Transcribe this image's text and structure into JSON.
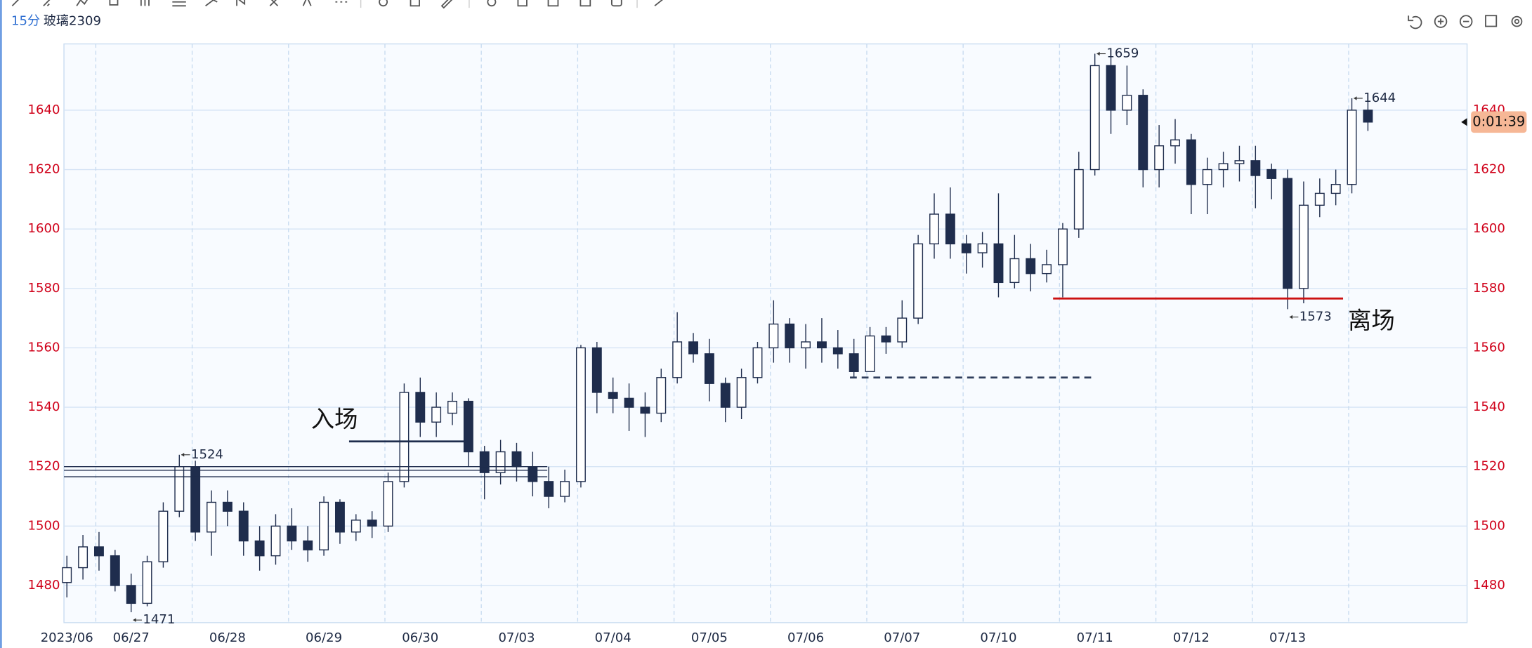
{
  "chart_data": {
    "type": "candlestick",
    "period": "15分",
    "title": "玻璃2309",
    "categories": [
      "2023/06",
      null,
      null,
      null,
      "06/27",
      null,
      null,
      null,
      null,
      null,
      "06/28",
      null,
      null,
      null,
      null,
      null,
      "06/29",
      null,
      null,
      null,
      null,
      null,
      "06/30",
      null,
      null,
      null,
      null,
      null,
      "07/03",
      null,
      null,
      null,
      null,
      null,
      "07/04",
      null,
      null,
      null,
      null,
      null,
      "07/05",
      null,
      null,
      null,
      null,
      null,
      "07/06",
      null,
      null,
      null,
      null,
      null,
      "07/07",
      null,
      null,
      null,
      null,
      null,
      "07/10",
      null,
      null,
      null,
      null,
      null,
      "07/11",
      null,
      null,
      null,
      null,
      null,
      "07/12",
      null,
      null,
      null,
      null,
      null,
      "07/13",
      null,
      null,
      null,
      null,
      null
    ],
    "open": [
      1481,
      1486,
      1493,
      1490,
      1480,
      1474,
      1488,
      1505,
      1520,
      1498,
      1508,
      1505,
      1495,
      1490,
      1500,
      1495,
      1492,
      1508,
      1498,
      1502,
      1500,
      1515,
      1545,
      1535,
      1538,
      1542,
      1525,
      1518,
      1525,
      1520,
      1515,
      1510,
      1515,
      1560,
      1545,
      1543,
      1540,
      1538,
      1550,
      1562,
      1558,
      1548,
      1540,
      1550,
      1560,
      1568,
      1560,
      1562,
      1560,
      1558,
      1552,
      1564,
      1562,
      1570,
      1595,
      1605,
      1595,
      1592,
      1595,
      1582,
      1590,
      1585,
      1588,
      1600,
      1620,
      1655,
      1640,
      1645,
      1620,
      1628,
      1630,
      1615,
      1620,
      1622,
      1623,
      1620,
      1617,
      1580,
      1608,
      1612,
      1615,
      1640
    ],
    "high": [
      1490,
      1497,
      1498,
      1492,
      1484,
      1490,
      1508,
      1524,
      1522,
      1512,
      1512,
      1508,
      1500,
      1504,
      1506,
      1500,
      1510,
      1509,
      1504,
      1505,
      1518,
      1548,
      1550,
      1545,
      1545,
      1543,
      1527,
      1529,
      1528,
      1525,
      1520,
      1519,
      1561,
      1562,
      1550,
      1548,
      1545,
      1553,
      1572,
      1565,
      1563,
      1550,
      1553,
      1562,
      1576,
      1570,
      1568,
      1570,
      1566,
      1563,
      1567,
      1567,
      1576,
      1598,
      1612,
      1614,
      1598,
      1599,
      1612,
      1598,
      1595,
      1593,
      1602,
      1626,
      1659,
      1658,
      1655,
      1647,
      1635,
      1637,
      1632,
      1624,
      1626,
      1628,
      1628,
      1622,
      1620,
      1616,
      1617,
      1620,
      1644,
      1643
    ],
    "low": [
      1476,
      1482,
      1485,
      1478,
      1471,
      1473,
      1486,
      1503,
      1495,
      1490,
      1500,
      1490,
      1485,
      1487,
      1492,
      1488,
      1490,
      1494,
      1495,
      1496,
      1498,
      1513,
      1530,
      1530,
      1534,
      1520,
      1509,
      1514,
      1515,
      1510,
      1506,
      1508,
      1513,
      1538,
      1538,
      1532,
      1530,
      1535,
      1548,
      1555,
      1542,
      1535,
      1536,
      1548,
      1555,
      1555,
      1553,
      1555,
      1553,
      1550,
      1552,
      1558,
      1560,
      1568,
      1590,
      1590,
      1585,
      1587,
      1577,
      1580,
      1579,
      1582,
      1577,
      1597,
      1618,
      1632,
      1635,
      1614,
      1614,
      1622,
      1605,
      1605,
      1614,
      1616,
      1607,
      1610,
      1573,
      1575,
      1604,
      1608,
      1612,
      1633
    ],
    "close": [
      1486,
      1493,
      1490,
      1480,
      1474,
      1488,
      1505,
      1520,
      1498,
      1508,
      1505,
      1495,
      1490,
      1500,
      1495,
      1492,
      1508,
      1498,
      1502,
      1500,
      1515,
      1545,
      1535,
      1540,
      1542,
      1525,
      1518,
      1525,
      1520,
      1515,
      1510,
      1515,
      1560,
      1545,
      1543,
      1540,
      1538,
      1550,
      1562,
      1558,
      1548,
      1540,
      1550,
      1560,
      1568,
      1560,
      1562,
      1560,
      1558,
      1552,
      1564,
      1562,
      1570,
      1595,
      1605,
      1595,
      1592,
      1595,
      1582,
      1590,
      1585,
      1588,
      1600,
      1620,
      1655,
      1640,
      1645,
      1620,
      1628,
      1630,
      1615,
      1620,
      1622,
      1623,
      1618,
      1617,
      1580,
      1608,
      1612,
      1615,
      1640,
      1636
    ],
    "color": "#1f2d4d",
    "ylim": [
      1467.5,
      1662.3
    ],
    "yticks": [
      1480,
      1500,
      1520,
      1540,
      1560,
      1580,
      1600,
      1620,
      1640
    ],
    "grid": true,
    "extremes": [
      1659,
      1644,
      1524,
      1471,
      1573
    ],
    "lines": [
      {
        "value": 1528.5,
        "color": "#1f2d4d",
        "style": "solid"
      },
      {
        "value": 1520,
        "color": "#1f2d4d",
        "style": "thin"
      },
      {
        "value": 1518.8,
        "color": "#1f2d4d",
        "style": "thin"
      },
      {
        "value": 1516.6,
        "color": "#1f2d4d",
        "style": "thin"
      },
      {
        "value": 1550,
        "color": "#2f3e5c",
        "style": "dashed"
      },
      {
        "value": 1576.6,
        "color": "#cc1111",
        "style": "solid"
      }
    ],
    "annotations": [
      "入场",
      "离场"
    ],
    "countdown": "0:01:39"
  }
}
